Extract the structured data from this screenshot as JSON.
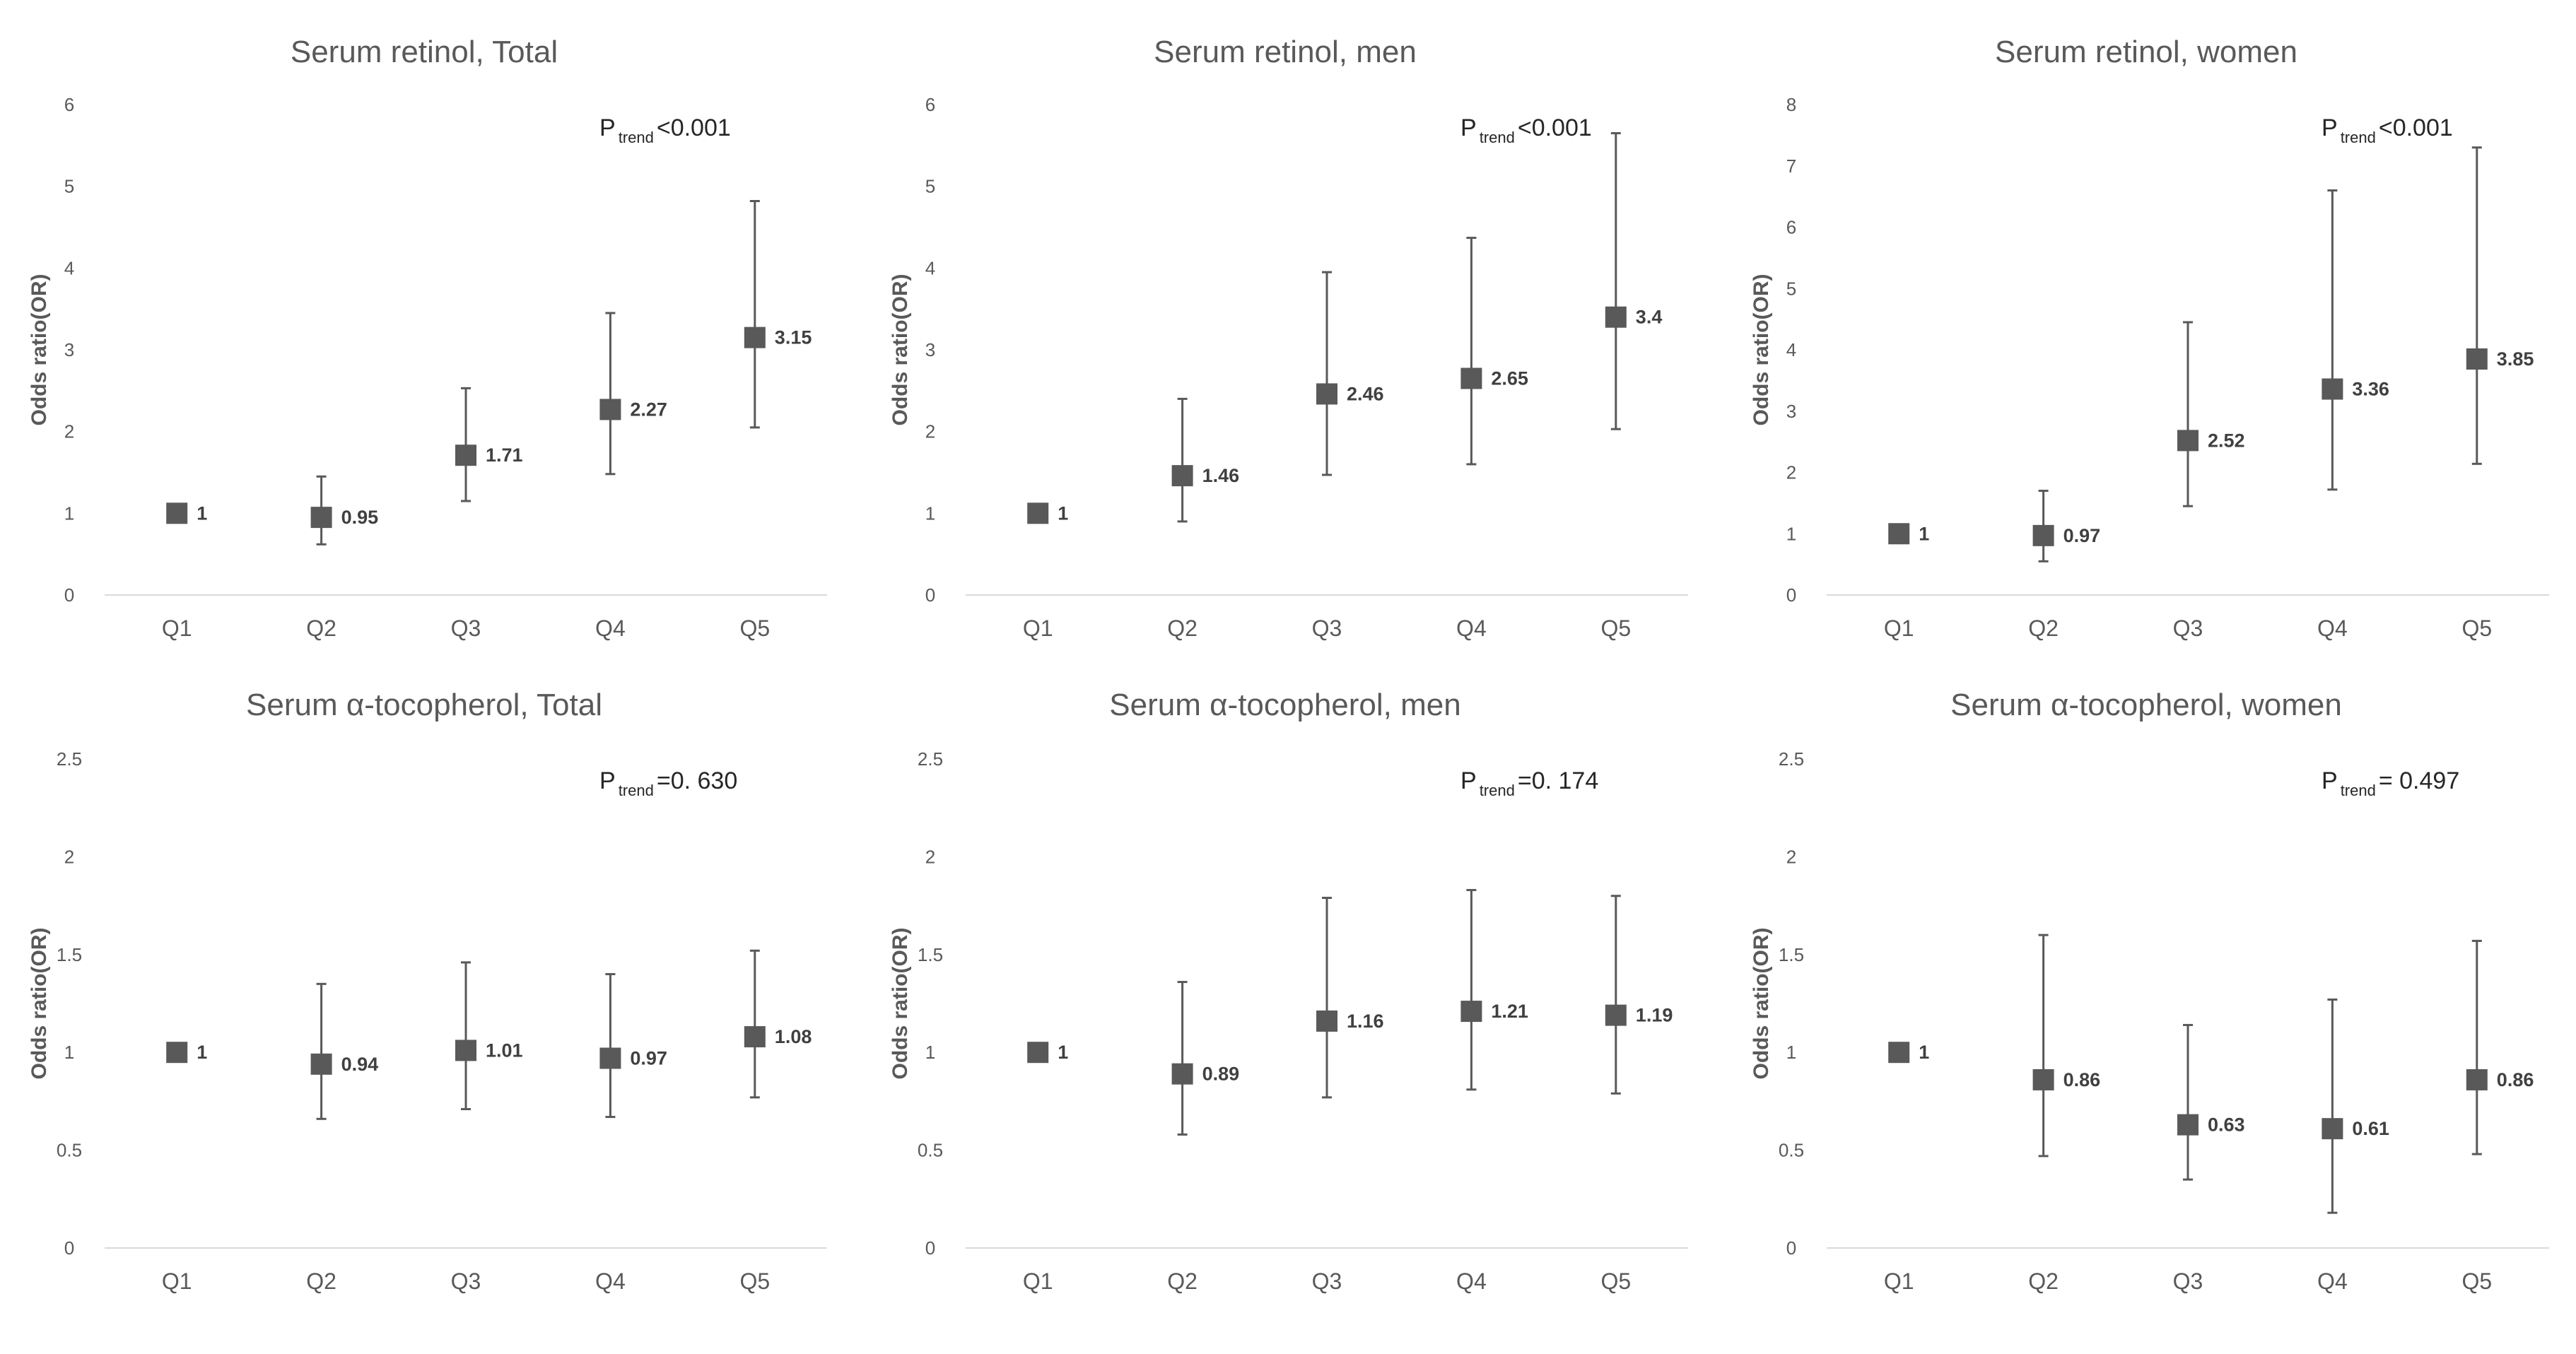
{
  "chart_data": [
    {
      "type": "scatter",
      "title": "Serum retinol, Total",
      "ylabel": "Odds ratio(OR)",
      "xlabel": "",
      "ylim": [
        0,
        6
      ],
      "yticks": [
        "0",
        "1",
        "2",
        "3",
        "4",
        "5",
        "6"
      ],
      "yticks_values": [
        0,
        1,
        2,
        3,
        4,
        5,
        6
      ],
      "categories": [
        "Q1",
        "Q2",
        "Q3",
        "Q4",
        "Q5"
      ],
      "values": [
        1,
        0.95,
        1.71,
        2.27,
        3.15
      ],
      "value_labels": [
        "1",
        "0.95",
        "1.71",
        "2.27",
        "3.15"
      ],
      "ci_lower": [
        1,
        0.62,
        1.15,
        1.48,
        2.05
      ],
      "ci_upper": [
        1,
        1.45,
        2.53,
        3.45,
        4.82
      ],
      "p_main": "P",
      "p_sub": "trend",
      "p_value": "<0.001",
      "grid": false
    },
    {
      "type": "scatter",
      "title": "Serum retinol, men",
      "ylabel": "Odds ratio(OR)",
      "xlabel": "",
      "ylim": [
        0,
        6
      ],
      "yticks": [
        "0",
        "1",
        "2",
        "3",
        "4",
        "5",
        "6"
      ],
      "yticks_values": [
        0,
        1,
        2,
        3,
        4,
        5,
        6
      ],
      "categories": [
        "Q1",
        "Q2",
        "Q3",
        "Q4",
        "Q5"
      ],
      "values": [
        1,
        1.46,
        2.46,
        2.65,
        3.4
      ],
      "value_labels": [
        "1",
        "1.46",
        "2.46",
        "2.65",
        "3.4"
      ],
      "ci_lower": [
        1,
        0.9,
        1.47,
        1.6,
        2.03
      ],
      "ci_upper": [
        1,
        2.4,
        3.95,
        4.37,
        5.65
      ],
      "p_main": "P",
      "p_sub": "trend",
      "p_value": "<0.001",
      "grid": false
    },
    {
      "type": "scatter",
      "title": "Serum retinol, women",
      "ylabel": "Odds ratio(OR)",
      "xlabel": "",
      "ylim": [
        0,
        8
      ],
      "yticks": [
        "0",
        "1",
        "2",
        "3",
        "4",
        "5",
        "6",
        "7",
        "8"
      ],
      "yticks_values": [
        0,
        1,
        2,
        3,
        4,
        5,
        6,
        7,
        8
      ],
      "categories": [
        "Q1",
        "Q2",
        "Q3",
        "Q4",
        "Q5"
      ],
      "values": [
        1,
        0.97,
        2.52,
        3.36,
        3.85
      ],
      "value_labels": [
        "1",
        "0.97",
        "2.52",
        "3.36",
        "3.85"
      ],
      "ci_lower": [
        1,
        0.55,
        1.45,
        1.72,
        2.14
      ],
      "ci_upper": [
        1,
        1.7,
        4.45,
        6.6,
        7.3
      ],
      "p_main": "P",
      "p_sub": "trend",
      "p_value": "<0.001",
      "grid": false
    },
    {
      "type": "scatter",
      "title": "Serum α-tocopherol, Total",
      "ylabel": "Odds ratio(OR)",
      "xlabel": "",
      "ylim": [
        0,
        2.5
      ],
      "yticks": [
        "0",
        "0.5",
        "1",
        "1.5",
        "2",
        "2.5"
      ],
      "yticks_values": [
        0,
        0.5,
        1,
        1.5,
        2,
        2.5
      ],
      "categories": [
        "Q1",
        "Q2",
        "Q3",
        "Q4",
        "Q5"
      ],
      "values": [
        1,
        0.94,
        1.01,
        0.97,
        1.08
      ],
      "value_labels": [
        "1",
        "0.94",
        "1.01",
        "0.97",
        "1.08"
      ],
      "ci_lower": [
        1,
        0.66,
        0.71,
        0.67,
        0.77
      ],
      "ci_upper": [
        1,
        1.35,
        1.46,
        1.4,
        1.52
      ],
      "p_main": "P",
      "p_sub": "trend",
      "p_value": "=0. 630",
      "grid": false
    },
    {
      "type": "scatter",
      "title": "Serum α-tocopherol, men",
      "ylabel": "Odds ratio(OR)",
      "xlabel": "",
      "ylim": [
        0,
        2.5
      ],
      "yticks": [
        "0",
        "0.5",
        "1",
        "1.5",
        "2",
        "2.5"
      ],
      "yticks_values": [
        0,
        0.5,
        1,
        1.5,
        2,
        2.5
      ],
      "categories": [
        "Q1",
        "Q2",
        "Q3",
        "Q4",
        "Q5"
      ],
      "values": [
        1,
        0.89,
        1.16,
        1.21,
        1.19
      ],
      "value_labels": [
        "1",
        "0.89",
        "1.16",
        "1.21",
        "1.19"
      ],
      "ci_lower": [
        1,
        0.58,
        0.77,
        0.81,
        0.79
      ],
      "ci_upper": [
        1,
        1.36,
        1.79,
        1.83,
        1.8
      ],
      "p_main": "P",
      "p_sub": "trend",
      "p_value": "=0. 174",
      "grid": false
    },
    {
      "type": "scatter",
      "title": "Serum α-tocopherol, women",
      "ylabel": "Odds ratio(OR)",
      "xlabel": "",
      "ylim": [
        0,
        2.5
      ],
      "yticks": [
        "0",
        "0.5",
        "1",
        "1.5",
        "2",
        "2.5"
      ],
      "yticks_values": [
        0,
        0.5,
        1,
        1.5,
        2,
        2.5
      ],
      "categories": [
        "Q1",
        "Q2",
        "Q3",
        "Q4",
        "Q5"
      ],
      "values": [
        1,
        0.86,
        0.63,
        0.61,
        0.86
      ],
      "value_labels": [
        "1",
        "0.86",
        "0.63",
        "0.61",
        "0.86"
      ],
      "ci_lower": [
        1,
        0.47,
        0.35,
        0.18,
        0.48
      ],
      "ci_upper": [
        1,
        1.6,
        1.14,
        1.27,
        1.57
      ],
      "p_main": "P",
      "p_sub": "trend",
      "p_value": "= 0.497",
      "grid": false
    }
  ],
  "colors": {
    "marker": "#595959",
    "errorbar": "#595959",
    "axis": "#d9d9d9",
    "text": "#595959",
    "label": "#404040"
  }
}
